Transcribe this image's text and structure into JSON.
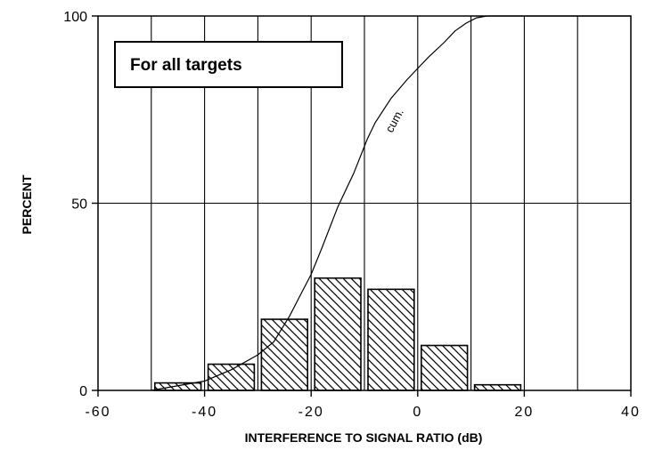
{
  "chart_data": {
    "type": "bar",
    "xlabel": "INTERFERENCE TO SIGNAL RATIO (dB)",
    "ylabel": "PERCENT",
    "xlim": [
      -60,
      40
    ],
    "ylim": [
      0,
      100
    ],
    "x_ticks": [
      -60,
      -40,
      -20,
      0,
      20,
      40
    ],
    "x_tick_labels": [
      "-60",
      "-40",
      "-20",
      "0",
      "20",
      "40"
    ],
    "y_ticks": [
      0,
      50,
      100
    ],
    "y_tick_labels": [
      "0",
      "50",
      "100"
    ],
    "vertical_gridlines": [
      -50,
      -40,
      -30,
      -20,
      -10,
      0,
      10,
      20,
      30
    ],
    "horizontal_gridlines": [
      50
    ],
    "grid": true,
    "bars": [
      {
        "x0": -50,
        "x1": -40,
        "value": 2
      },
      {
        "x0": -40,
        "x1": -30,
        "value": 7
      },
      {
        "x0": -30,
        "x1": -20,
        "value": 19
      },
      {
        "x0": -20,
        "x1": -10,
        "value": 30
      },
      {
        "x0": -10,
        "x1": 0,
        "value": 27
      },
      {
        "x0": 0,
        "x1": 10,
        "value": 12
      },
      {
        "x0": 10,
        "x1": 20,
        "value": 1.5
      }
    ],
    "cumulative": {
      "label": "cum.",
      "points": [
        [
          -50,
          0
        ],
        [
          -40,
          2.5
        ],
        [
          -35,
          5.5
        ],
        [
          -30,
          9.5
        ],
        [
          -27,
          13
        ],
        [
          -24,
          20
        ],
        [
          -22,
          25.5
        ],
        [
          -20,
          31
        ],
        [
          -18,
          38
        ],
        [
          -15,
          49
        ],
        [
          -12,
          58
        ],
        [
          -9.5,
          67
        ],
        [
          -8,
          71.5
        ],
        [
          -5,
          78
        ],
        [
          -2,
          83
        ],
        [
          0,
          86
        ],
        [
          2,
          89
        ],
        [
          5,
          93
        ],
        [
          7,
          96
        ],
        [
          9,
          98
        ],
        [
          11,
          99.5
        ],
        [
          13,
          100
        ],
        [
          40,
          100
        ]
      ]
    },
    "annotation_box": "For all targets"
  }
}
